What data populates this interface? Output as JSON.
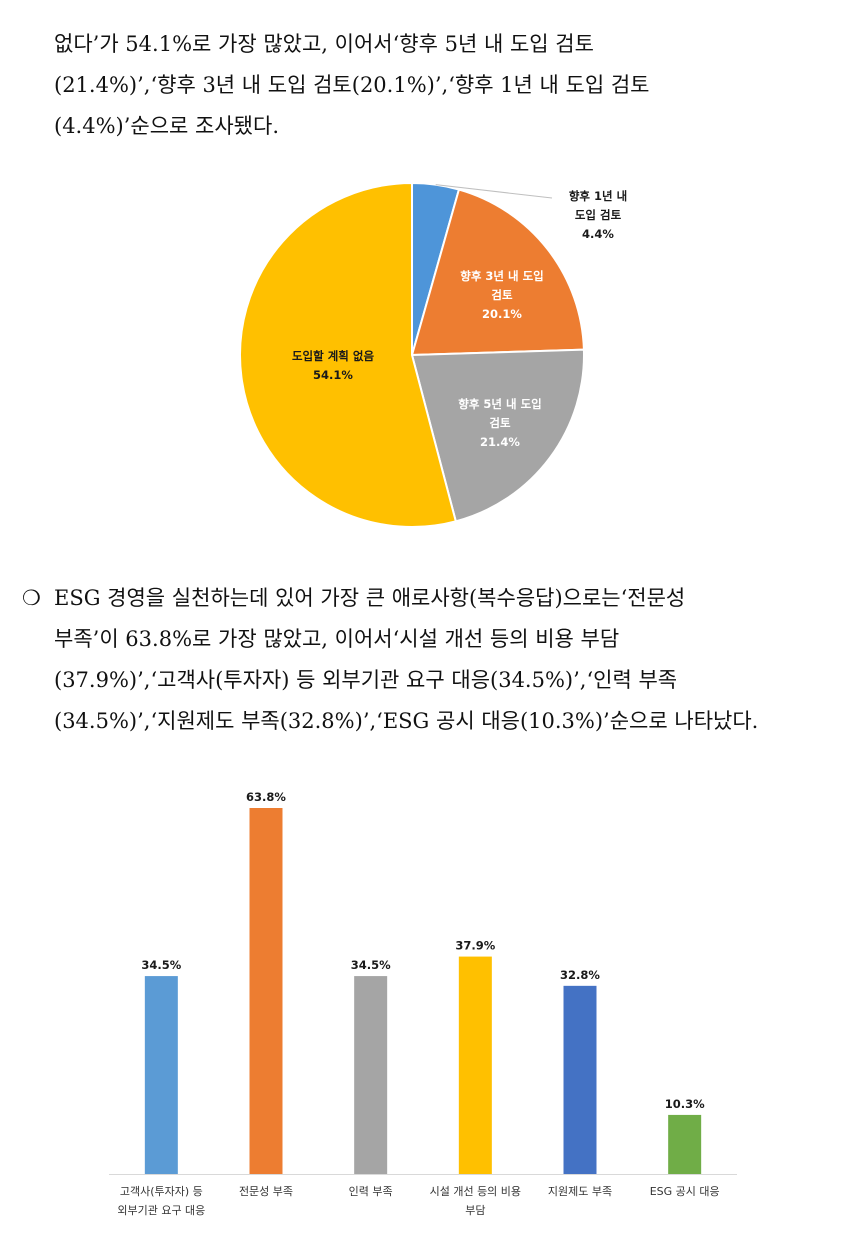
{
  "para1": {
    "lines": [
      "없다’가 54.1%로 가장 많았고, 이어서‘향후 5년 내 도입 검토",
      "(21.4%)’,‘향후 3년 내 도입 검토(20.1%)’,‘향후 1년 내 도입 검토",
      "(4.4%)’순으로 조사됐다."
    ]
  },
  "para2": {
    "bullet": "❍",
    "lines": [
      "ESG 경영을 실천하는데 있어 가장 큰 애로사항(복수응답)으로는‘전문성",
      "부족’이 63.8%로 가장 많았고, 이어서‘시설 개선 등의 비용 부담",
      "(37.9%)’,‘고객사(투자자) 등 외부기관 요구 대응(34.5%)’,‘인력 부족",
      "(34.5%)’,‘지원제도 부족(32.8%)’,‘ESG 공시 대응(10.3%)’순으로 나타났다."
    ]
  },
  "chart_data": [
    {
      "type": "pie",
      "slices": [
        {
          "name": "향후 1년 내 도입 검토",
          "label_lines": [
            "향후 1년 내",
            "도입 검토"
          ],
          "value": 4.4,
          "value_label": "4.4%",
          "color": "#4E95D9"
        },
        {
          "name": "향후 3년 내 도입 검토",
          "label_lines": [
            "향후 3년 내 도입",
            "검토"
          ],
          "value": 20.1,
          "value_label": "20.1%",
          "color": "#ED7D31"
        },
        {
          "name": "향후 5년 내 도입 검토",
          "label_lines": [
            "향후 5년 내 도입",
            "검토"
          ],
          "value": 21.4,
          "value_label": "21.4%",
          "color": "#A5A5A5"
        },
        {
          "name": "도입할 계획 없음",
          "label_lines": [
            "도입할 계획 없음"
          ],
          "value": 54.1,
          "value_label": "54.1%",
          "color": "#FFC000"
        }
      ]
    },
    {
      "type": "bar",
      "categories": [
        [
          "고객사(투자자) 등",
          "외부기관 요구 대응"
        ],
        [
          "전문성 부족"
        ],
        [
          "인력 부족"
        ],
        [
          "시설 개선 등의 비용",
          "부담"
        ],
        [
          "지원제도 부족"
        ],
        [
          "ESG 공시 대응"
        ]
      ],
      "values": [
        34.5,
        63.8,
        34.5,
        37.9,
        32.8,
        10.3
      ],
      "value_labels": [
        "34.5%",
        "63.8%",
        "34.5%",
        "37.9%",
        "32.8%",
        "10.3%"
      ],
      "colors": [
        "#5B9BD5",
        "#ED7D31",
        "#A5A5A5",
        "#FFC000",
        "#4472C4",
        "#70AD47"
      ],
      "ylim": [
        0,
        63.8
      ]
    }
  ]
}
